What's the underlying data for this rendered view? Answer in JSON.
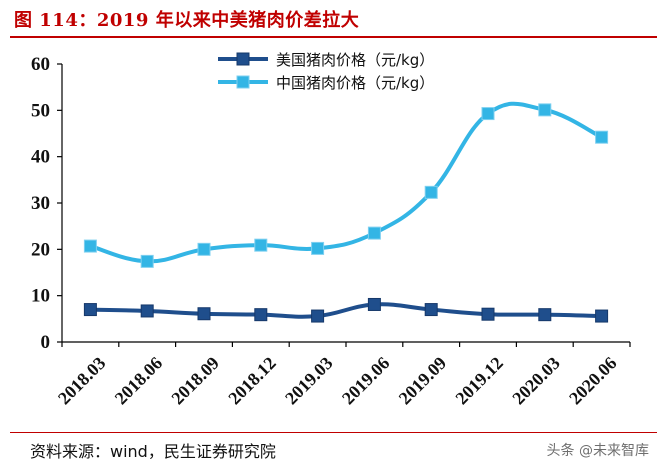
{
  "title": "图 114：2019 年以来中美猪肉价差拉大",
  "source": "资料来源：wind，民生证券研究院",
  "watermark": "头条 @未来智库",
  "colors": {
    "us": "#1f4e8c",
    "cn": "#33b5e5",
    "accent": "#c00000"
  },
  "chart_data": {
    "type": "line",
    "title": "2019 年以来中美猪肉价差拉大",
    "xlabel": "",
    "ylabel": "",
    "ylim": [
      0,
      60
    ],
    "yticks": [
      0,
      10,
      20,
      30,
      40,
      50,
      60
    ],
    "categories": [
      "2018.03",
      "2018.06",
      "2018.09",
      "2018.12",
      "2019.03",
      "2019.06",
      "2019.09",
      "2019.12",
      "2020.03",
      "2020.06"
    ],
    "series": [
      {
        "name": "美国猪肉价格（元/kg）",
        "color": "#1f4e8c",
        "values": [
          7.0,
          6.7,
          6.1,
          5.9,
          5.6,
          8.1,
          7.0,
          6.0,
          5.9,
          5.6
        ]
      },
      {
        "name": "中国猪肉价格（元/kg）",
        "color": "#33b5e5",
        "values": [
          20.7,
          17.4,
          20.0,
          20.9,
          20.2,
          23.5,
          32.3,
          49.3,
          50.1,
          44.2
        ]
      }
    ],
    "legend_position": "top-center"
  }
}
